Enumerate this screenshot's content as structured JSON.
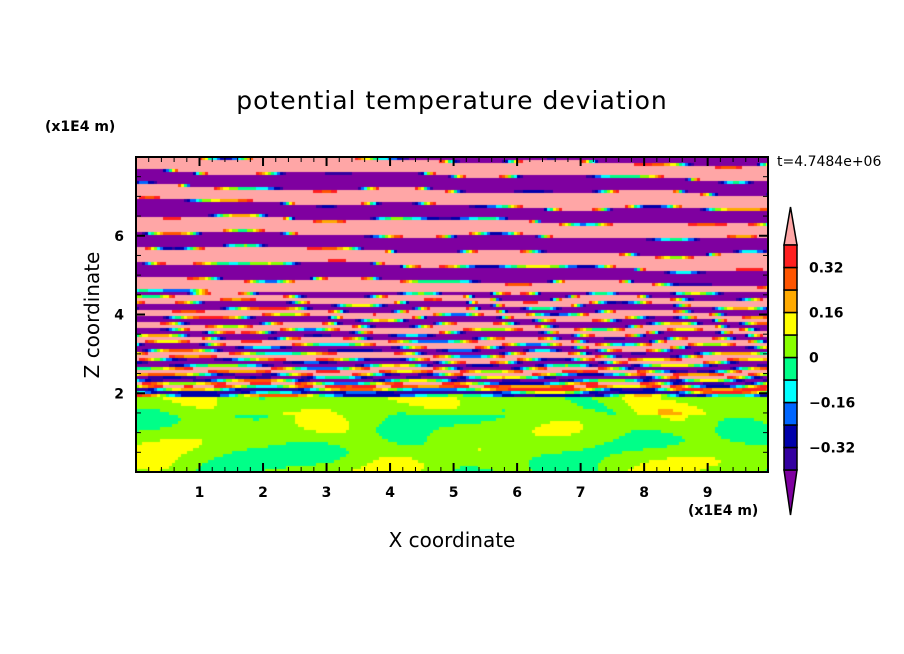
{
  "chart_data": {
    "type": "heatmap",
    "title": "potential temperature deviation",
    "xlabel": "X coordinate",
    "ylabel": "Z coordinate",
    "x_unit": "(x1E4 m)",
    "y_unit": "(x1E4 m)",
    "time_label": "t=4.7484e+06",
    "xlim": [
      0,
      9.95
    ],
    "ylim": [
      0,
      8
    ],
    "x_ticks": [
      1,
      2,
      3,
      4,
      5,
      6,
      7,
      8,
      9
    ],
    "x_tick_labels": [
      "1",
      "2",
      "3",
      "4",
      "5",
      "6",
      "7",
      "8",
      "9"
    ],
    "y_ticks": [
      2,
      4,
      6
    ],
    "y_tick_labels": [
      "2",
      "4",
      "6"
    ],
    "colorbar": {
      "levels": [
        -0.4,
        -0.32,
        -0.24,
        -0.16,
        -0.08,
        0,
        0.08,
        0.16,
        0.24,
        0.32,
        0.4
      ],
      "labels": [
        "0.32",
        "0.16",
        "0",
        "-0.16",
        "-0.32"
      ],
      "label_values": [
        0.32,
        0.16,
        0,
        -0.16,
        -0.32
      ],
      "colors": [
        "#3300a0",
        "#0000aa",
        "#0066ff",
        "#00ffff",
        "#00ff88",
        "#88ff00",
        "#ffff00",
        "#ffaa00",
        "#ff5500",
        "#ff2020"
      ],
      "under_color": "#7f00a0",
      "over_color": "#ffa6a6",
      "extend": "both"
    },
    "description_regions": {
      "z_0_to_2": "near zero (green/lime, yellow patches)",
      "z_2_to_4.5": "mixed turbulent layers",
      "z_4.5_to_8": "alternating bands beyond ±0.4"
    }
  }
}
